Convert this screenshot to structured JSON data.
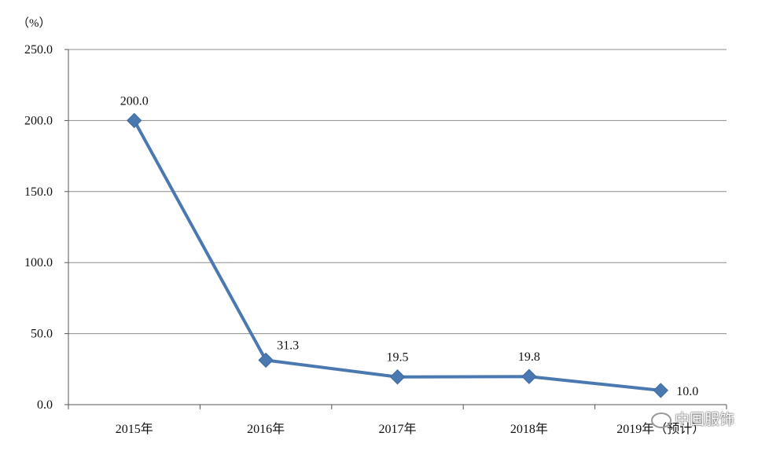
{
  "chart_data": {
    "type": "line",
    "unit_label": "（%）",
    "categories": [
      "2015年",
      "2016年",
      "2017年",
      "2018年",
      "2019年（预计）"
    ],
    "values": [
      200.0,
      31.3,
      19.5,
      19.8,
      10.0
    ],
    "data_labels": [
      "200.0",
      "31.3",
      "19.5",
      "19.8",
      "10.0"
    ],
    "yticks": [
      "0.0",
      "50.0",
      "100.0",
      "150.0",
      "200.0",
      "250.0"
    ],
    "ylim": [
      0,
      250
    ],
    "grid": true,
    "line_color": "#4a78b0",
    "marker": "diamond"
  },
  "watermark": "中国服饰"
}
